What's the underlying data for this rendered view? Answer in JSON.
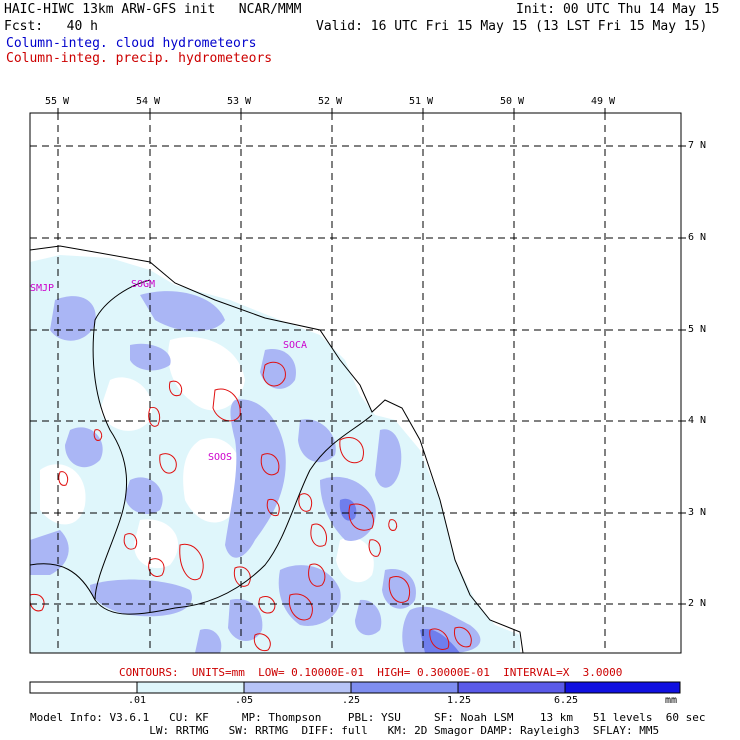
{
  "header": {
    "line1_left": "HAIC-HIWC 13km ARW-GFS init   NCAR/MMM",
    "line1_right": "Init: 00 UTC Thu 14 May 15",
    "line2_left": "Fcst:   40 h",
    "line2_right": "Valid: 16 UTC Fri 15 May 15 (13 LST Fri 15 May 15)",
    "field1": "Column-integ. cloud hydrometeors",
    "field2": "Column-integ. precip. hydrometeors"
  },
  "map": {
    "lon_labels": [
      "55 W",
      "54 W",
      "53 W",
      "52 W",
      "51 W",
      "50 W",
      "49 W"
    ],
    "lat_labels": [
      "7 N",
      "6 N",
      "5 N",
      "4 N",
      "3 N",
      "2 N"
    ],
    "stations": [
      "SMJP",
      "SOGM",
      "SOCA",
      "SOOS"
    ]
  },
  "legend": {
    "contour_info": "CONTOURS:  UNITS=mm  LOW= 0.10000E-01  HIGH= 0.30000E-01  INTERVAL=X  3.0000",
    "ticks": [
      ".01",
      ".05",
      ".25",
      "1.25",
      "6.25"
    ],
    "units": "mm",
    "colors": [
      "#ffffff",
      "#dff6fb",
      "#b7c4f7",
      "#7f8ef0",
      "#5a5ae8",
      "#1010e0"
    ]
  },
  "model_info": {
    "line1": "Model Info: V3.6.1   CU: KF     MP: Thompson    PBL: YSU     SF: Noah LSM    13 km   51 levels  60 sec",
    "line2": "                  LW: RRTMG   SW: RRTMG  DIFF: full   KM: 2D Smagor DAMP: Rayleigh3  SFLAY: MM5"
  }
}
